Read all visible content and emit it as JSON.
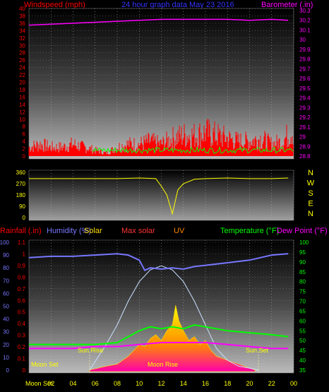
{
  "header": {
    "windspeed_label": "Windspeed (mph)",
    "title": "24 hour graph data  May 23 2016",
    "barometer_label": "Barometer (.in)"
  },
  "wind_panel": {
    "left_ticks": [
      "0",
      "2",
      "4",
      "6",
      "8",
      "10",
      "12",
      "14",
      "16",
      "18",
      "20",
      "22",
      "24",
      "26",
      "28",
      "30",
      "32",
      "34",
      "36",
      "38",
      "40"
    ],
    "right_ticks": [
      "28.8",
      "28.9",
      "29",
      "29.1",
      "29.2",
      "29.3",
      "29.4",
      "29.5",
      "29.6",
      "29.7",
      "29.8",
      "29.9",
      "30",
      "30.1",
      "30.2",
      "30.3"
    ],
    "x_ticks": [
      "02",
      "04",
      "06",
      "08",
      "10",
      "12",
      "14",
      "16",
      "18",
      "20",
      "22",
      "00"
    ]
  },
  "direction_panel": {
    "left_ticks": [
      "0",
      "90",
      "180",
      "270",
      "360"
    ],
    "compass": [
      "N",
      "W",
      "S",
      "E",
      "N"
    ]
  },
  "bottom_panel": {
    "labels": {
      "rainfall": "Rainfall (.in)",
      "humidity": "Humidity (%)",
      "solar": "Solar",
      "max_solar": "Max solar",
      "uv": "UV",
      "temperature": "Temperature (°F)",
      "dew_point": "Dew Point (°F)"
    },
    "left_ticks_humidity": [
      "0",
      "10",
      "20",
      "30",
      "40",
      "50",
      "60",
      "70",
      "80",
      "90",
      "100"
    ],
    "left_ticks_rain": [
      "0",
      "0.1",
      "0.2",
      "0.3",
      "0.4",
      "0.5",
      "0.6",
      "0.7",
      "0.8",
      "0.9",
      "1",
      "1.1"
    ],
    "right_ticks": [
      "35",
      "40",
      "45",
      "50",
      "55",
      "60",
      "65",
      "70",
      "75",
      "80",
      "85",
      "90",
      "95",
      "100"
    ],
    "x_ticks": [
      "02",
      "04",
      "06",
      "08",
      "10",
      "12",
      "14",
      "16",
      "18",
      "20",
      "22",
      "00"
    ],
    "x_ticks_overlap": [
      "02",
      "04",
      "10",
      "14"
    ],
    "annotations": {
      "moon_set_bottom": "Moon Set",
      "moon_set_top": "Moon Set",
      "sun_rise": "Sun Rise",
      "moon_rise": "Moon Rise",
      "sun_set": "Sun Set"
    }
  },
  "colors": {
    "wind": "#ff0000",
    "gust": "#00ff00",
    "barometer": "#ff00ff",
    "direction": "#ffff00",
    "humidity": "#7777ff",
    "solar": "#ffdd00",
    "max_solar": "#c8e0ff",
    "temperature": "#00ff00",
    "dew_point": "#ff00ff"
  },
  "chart_data": [
    {
      "type": "line",
      "name": "wind_barometer",
      "x_range": [
        0,
        24
      ],
      "series": [
        {
          "name": "Barometer (.in)",
          "axis": "right",
          "ylim": [
            28.8,
            30.3
          ],
          "x": [
            0,
            2,
            4,
            6,
            8,
            10,
            12,
            14,
            16,
            18,
            20,
            22,
            23.5
          ],
          "values": [
            30.15,
            30.16,
            30.17,
            30.18,
            30.19,
            30.2,
            30.21,
            30.21,
            30.21,
            30.21,
            30.2,
            30.21,
            30.2
          ]
        },
        {
          "name": "Windspeed (mph)",
          "axis": "left",
          "ylim": [
            0,
            40
          ],
          "x": [
            0,
            1,
            2,
            3,
            4,
            5,
            6,
            7,
            8,
            9,
            10,
            11,
            12,
            13,
            14,
            15,
            16,
            17,
            18,
            19,
            20,
            21,
            22,
            23,
            23.9
          ],
          "values": [
            3,
            4,
            3,
            3,
            4,
            3,
            2,
            1,
            3,
            4,
            4,
            5,
            4,
            6,
            7,
            7,
            8,
            7,
            6,
            5,
            5,
            6,
            4,
            5,
            9
          ]
        }
      ]
    },
    {
      "type": "line",
      "name": "wind_direction",
      "ylim": [
        0,
        360
      ],
      "x": [
        0,
        2,
        4,
        6,
        8,
        10,
        11.5,
        12,
        12.5,
        13,
        13.5,
        14,
        15,
        16,
        18,
        20,
        22,
        23.5
      ],
      "values": [
        310,
        310,
        310,
        310,
        310,
        315,
        310,
        250,
        180,
        30,
        220,
        270,
        305,
        310,
        315,
        310,
        310,
        315
      ]
    },
    {
      "type": "line",
      "name": "humidity_temperature",
      "x_range": [
        0,
        24
      ],
      "series": [
        {
          "name": "Humidity (%)",
          "axis": "left",
          "ylim": [
            0,
            100
          ],
          "x": [
            0,
            2,
            4,
            6,
            8,
            9,
            10,
            10.5,
            11,
            12,
            13,
            14,
            15,
            16,
            18,
            20,
            22,
            23.5
          ],
          "values": [
            88,
            89,
            89,
            90,
            91,
            90,
            86,
            78,
            80,
            79,
            80,
            79,
            81,
            82,
            84,
            86,
            90,
            91
          ]
        },
        {
          "name": "Temperature (°F)",
          "axis": "right",
          "ylim": [
            35,
            100
          ],
          "x": [
            0,
            2,
            4,
            6,
            8,
            9,
            10,
            11,
            12,
            13,
            14,
            15,
            16,
            18,
            20,
            22,
            23.5
          ],
          "values": [
            48,
            48,
            48,
            48,
            49,
            52,
            55,
            57,
            56,
            57,
            56,
            58,
            57,
            55,
            54,
            53,
            52
          ]
        },
        {
          "name": "Dew Point (°F)",
          "axis": "right",
          "ylim": [
            35,
            100
          ],
          "x": [
            0,
            2,
            4,
            6,
            8,
            10,
            12,
            14,
            16,
            18,
            20,
            22,
            23.5
          ],
          "values": [
            46,
            46,
            46,
            47,
            47,
            48,
            49,
            49,
            49,
            48,
            47,
            46,
            46
          ]
        },
        {
          "name": "Max solar",
          "axis": "right",
          "ylim": [
            35,
            100
          ],
          "x": [
            5.5,
            7,
            8,
            9,
            10,
            11,
            12,
            13,
            14,
            15,
            16,
            17,
            18,
            19,
            20,
            20.8
          ],
          "values": [
            35,
            48,
            58,
            70,
            80,
            86,
            88,
            86,
            80,
            70,
            58,
            46,
            40,
            37,
            36,
            35
          ]
        },
        {
          "name": "Solar",
          "axis": "right",
          "ylim": [
            35,
            100
          ],
          "x": [
            5.5,
            7,
            8,
            9,
            9.5,
            10,
            10.5,
            11,
            11.5,
            12,
            12.5,
            13,
            13.3,
            13.6,
            14,
            14.5,
            15,
            15.5,
            16,
            16.5,
            17,
            18,
            19,
            20,
            20.5
          ],
          "values": [
            35,
            37,
            38,
            42,
            45,
            48,
            47,
            51,
            53,
            50,
            55,
            58,
            68,
            60,
            55,
            50,
            52,
            48,
            50,
            45,
            42,
            40,
            38,
            36,
            35
          ]
        }
      ]
    }
  ]
}
